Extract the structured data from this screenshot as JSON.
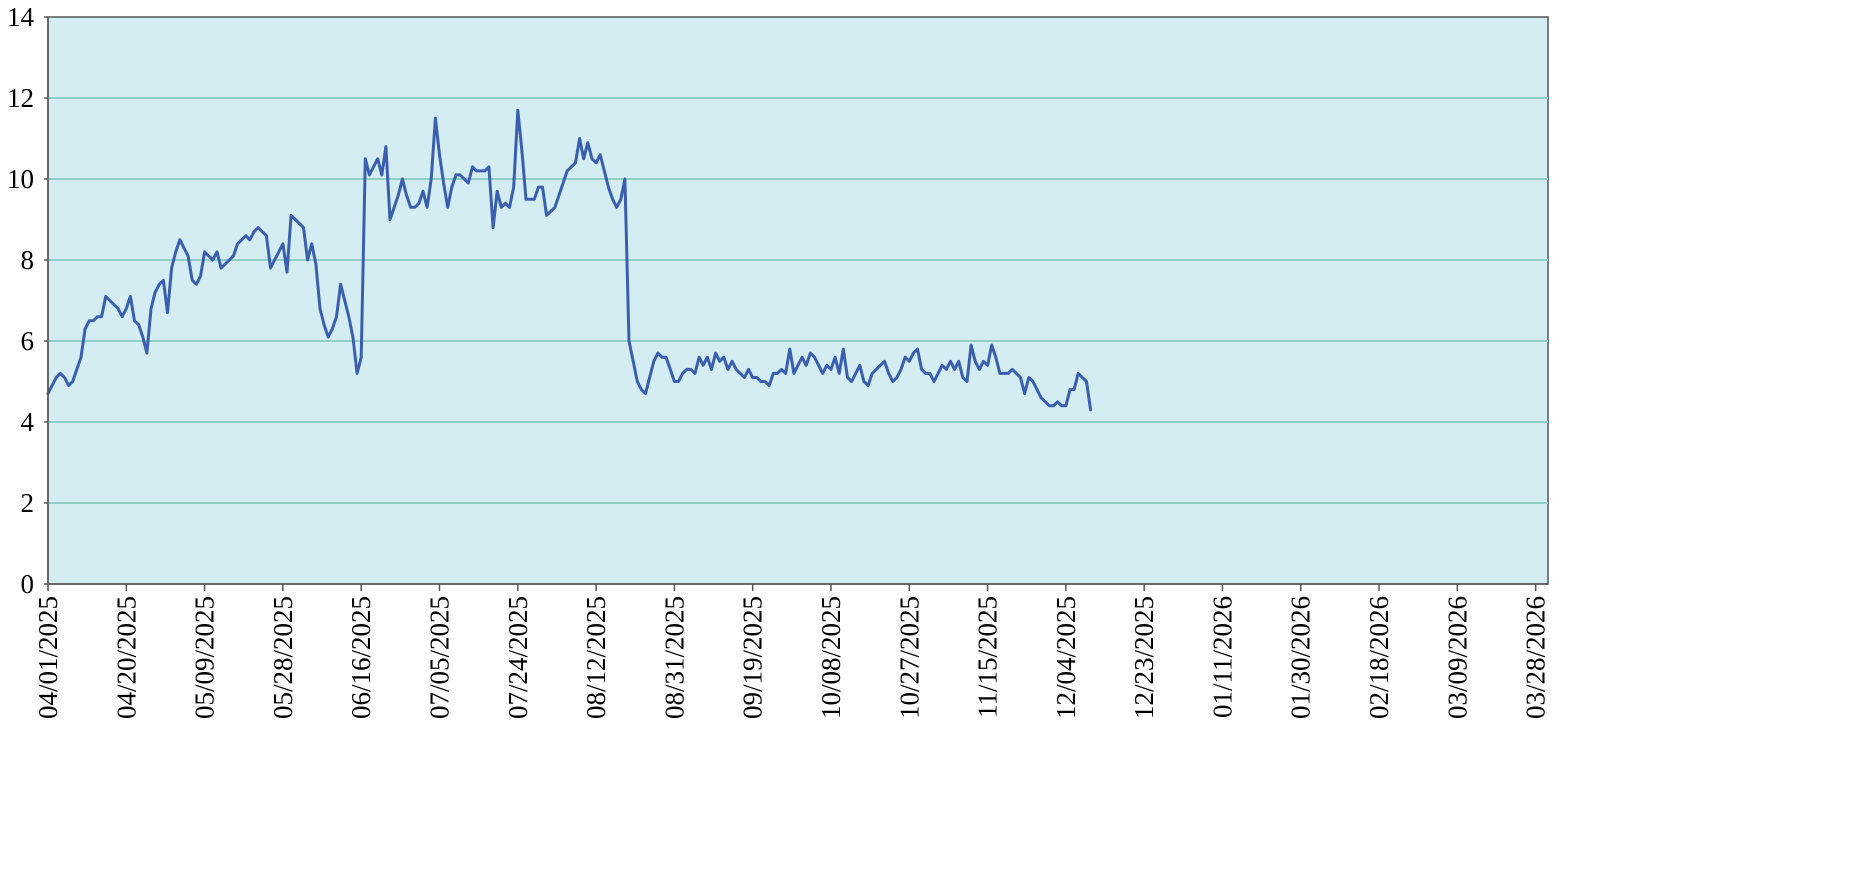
{
  "chart_data": {
    "type": "line",
    "title": "",
    "xlabel": "",
    "ylabel": "",
    "ylim": [
      0,
      14
    ],
    "yticks": [
      0,
      2,
      4,
      6,
      8,
      10,
      12,
      14
    ],
    "xlim": [
      "04/01/2025",
      "03/31/2026"
    ],
    "xticks": [
      "04/01/2025",
      "04/20/2025",
      "05/09/2025",
      "05/28/2025",
      "06/16/2025",
      "07/05/2025",
      "07/24/2025",
      "08/12/2025",
      "08/31/2025",
      "09/19/2025",
      "10/08/2025",
      "10/27/2025",
      "11/15/2025",
      "12/04/2025",
      "12/23/2025",
      "01/11/2026",
      "01/30/2026",
      "02/18/2026",
      "03/09/2026",
      "03/28/2026"
    ],
    "grid": {
      "horizontal": true,
      "vertical": false
    },
    "legend": "none",
    "colors": {
      "plot_background": "#d4edf3",
      "gridline": "#8fcfc6",
      "line": "#3a5fb0",
      "axis": "#555555"
    },
    "series": [
      {
        "points": [
          [
            "04/01/2025",
            4.7
          ],
          [
            "04/02/2025",
            4.9
          ],
          [
            "04/03/2025",
            5.1
          ],
          [
            "04/04/2025",
            5.2
          ],
          [
            "04/05/2025",
            5.1
          ],
          [
            "04/06/2025",
            4.9
          ],
          [
            "04/07/2025",
            5.0
          ],
          [
            "04/08/2025",
            5.3
          ],
          [
            "04/09/2025",
            5.6
          ],
          [
            "04/10/2025",
            6.3
          ],
          [
            "04/11/2025",
            6.5
          ],
          [
            "04/12/2025",
            6.5
          ],
          [
            "04/13/2025",
            6.6
          ],
          [
            "04/14/2025",
            6.6
          ],
          [
            "04/15/2025",
            7.1
          ],
          [
            "04/16/2025",
            7.0
          ],
          [
            "04/17/2025",
            6.9
          ],
          [
            "04/18/2025",
            6.8
          ],
          [
            "04/19/2025",
            6.6
          ],
          [
            "04/20/2025",
            6.8
          ],
          [
            "04/21/2025",
            7.1
          ],
          [
            "04/22/2025",
            6.5
          ],
          [
            "04/23/2025",
            6.4
          ],
          [
            "04/24/2025",
            6.1
          ],
          [
            "04/25/2025",
            5.7
          ],
          [
            "04/26/2025",
            6.8
          ],
          [
            "04/27/2025",
            7.2
          ],
          [
            "04/28/2025",
            7.4
          ],
          [
            "04/29/2025",
            7.5
          ],
          [
            "04/30/2025",
            6.7
          ],
          [
            "05/01/2025",
            7.8
          ],
          [
            "05/02/2025",
            8.2
          ],
          [
            "05/03/2025",
            8.5
          ],
          [
            "05/04/2025",
            8.3
          ],
          [
            "05/05/2025",
            8.1
          ],
          [
            "05/06/2025",
            7.5
          ],
          [
            "05/07/2025",
            7.4
          ],
          [
            "05/08/2025",
            7.6
          ],
          [
            "05/09/2025",
            8.2
          ],
          [
            "05/10/2025",
            8.1
          ],
          [
            "05/11/2025",
            8.0
          ],
          [
            "05/12/2025",
            8.2
          ],
          [
            "05/13/2025",
            7.8
          ],
          [
            "05/14/2025",
            7.9
          ],
          [
            "05/15/2025",
            8.0
          ],
          [
            "05/16/2025",
            8.1
          ],
          [
            "05/17/2025",
            8.4
          ],
          [
            "05/18/2025",
            8.5
          ],
          [
            "05/19/2025",
            8.6
          ],
          [
            "05/20/2025",
            8.5
          ],
          [
            "05/21/2025",
            8.7
          ],
          [
            "05/22/2025",
            8.8
          ],
          [
            "05/23/2025",
            8.7
          ],
          [
            "05/24/2025",
            8.6
          ],
          [
            "05/25/2025",
            7.8
          ],
          [
            "05/26/2025",
            8.0
          ],
          [
            "05/27/2025",
            8.2
          ],
          [
            "05/28/2025",
            8.4
          ],
          [
            "05/29/2025",
            7.7
          ],
          [
            "05/30/2025",
            9.1
          ],
          [
            "05/31/2025",
            9.0
          ],
          [
            "06/01/2025",
            8.9
          ],
          [
            "06/02/2025",
            8.8
          ],
          [
            "06/03/2025",
            8.0
          ],
          [
            "06/04/2025",
            8.4
          ],
          [
            "06/05/2025",
            7.9
          ],
          [
            "06/06/2025",
            6.8
          ],
          [
            "06/07/2025",
            6.4
          ],
          [
            "06/08/2025",
            6.1
          ],
          [
            "06/09/2025",
            6.3
          ],
          [
            "06/10/2025",
            6.6
          ],
          [
            "06/11/2025",
            7.4
          ],
          [
            "06/12/2025",
            7.0
          ],
          [
            "06/13/2025",
            6.6
          ],
          [
            "06/14/2025",
            6.1
          ],
          [
            "06/15/2025",
            5.2
          ],
          [
            "06/16/2025",
            5.6
          ],
          [
            "06/17/2025",
            10.5
          ],
          [
            "06/18/2025",
            10.1
          ],
          [
            "06/19/2025",
            10.3
          ],
          [
            "06/20/2025",
            10.5
          ],
          [
            "06/21/2025",
            10.1
          ],
          [
            "06/22/2025",
            10.8
          ],
          [
            "06/23/2025",
            9.0
          ],
          [
            "06/24/2025",
            9.3
          ],
          [
            "06/25/2025",
            9.6
          ],
          [
            "06/26/2025",
            10.0
          ],
          [
            "06/27/2025",
            9.6
          ],
          [
            "06/28/2025",
            9.3
          ],
          [
            "06/29/2025",
            9.3
          ],
          [
            "06/30/2025",
            9.4
          ],
          [
            "07/01/2025",
            9.7
          ],
          [
            "07/02/2025",
            9.3
          ],
          [
            "07/03/2025",
            10.0
          ],
          [
            "07/04/2025",
            11.5
          ],
          [
            "07/05/2025",
            10.6
          ],
          [
            "07/06/2025",
            9.9
          ],
          [
            "07/07/2025",
            9.3
          ],
          [
            "07/08/2025",
            9.8
          ],
          [
            "07/09/2025",
            10.1
          ],
          [
            "07/10/2025",
            10.1
          ],
          [
            "07/11/2025",
            10.0
          ],
          [
            "07/12/2025",
            9.9
          ],
          [
            "07/13/2025",
            10.3
          ],
          [
            "07/14/2025",
            10.2
          ],
          [
            "07/15/2025",
            10.2
          ],
          [
            "07/16/2025",
            10.2
          ],
          [
            "07/17/2025",
            10.3
          ],
          [
            "07/18/2025",
            8.8
          ],
          [
            "07/19/2025",
            9.7
          ],
          [
            "07/20/2025",
            9.3
          ],
          [
            "07/21/2025",
            9.4
          ],
          [
            "07/22/2025",
            9.3
          ],
          [
            "07/23/2025",
            9.8
          ],
          [
            "07/24/2025",
            11.7
          ],
          [
            "07/25/2025",
            10.7
          ],
          [
            "07/26/2025",
            9.5
          ],
          [
            "07/27/2025",
            9.5
          ],
          [
            "07/28/2025",
            9.5
          ],
          [
            "07/29/2025",
            9.8
          ],
          [
            "07/30/2025",
            9.8
          ],
          [
            "07/31/2025",
            9.1
          ],
          [
            "08/01/2025",
            9.2
          ],
          [
            "08/02/2025",
            9.3
          ],
          [
            "08/03/2025",
            9.6
          ],
          [
            "08/04/2025",
            9.9
          ],
          [
            "08/05/2025",
            10.2
          ],
          [
            "08/06/2025",
            10.3
          ],
          [
            "08/07/2025",
            10.4
          ],
          [
            "08/08/2025",
            11.0
          ],
          [
            "08/09/2025",
            10.5
          ],
          [
            "08/10/2025",
            10.9
          ],
          [
            "08/11/2025",
            10.5
          ],
          [
            "08/12/2025",
            10.4
          ],
          [
            "08/13/2025",
            10.6
          ],
          [
            "08/14/2025",
            10.2
          ],
          [
            "08/15/2025",
            9.8
          ],
          [
            "08/16/2025",
            9.5
          ],
          [
            "08/17/2025",
            9.3
          ],
          [
            "08/18/2025",
            9.5
          ],
          [
            "08/19/2025",
            10.0
          ],
          [
            "08/20/2025",
            6.0
          ],
          [
            "08/21/2025",
            5.5
          ],
          [
            "08/22/2025",
            5.0
          ],
          [
            "08/23/2025",
            4.8
          ],
          [
            "08/24/2025",
            4.7
          ],
          [
            "08/25/2025",
            5.1
          ],
          [
            "08/26/2025",
            5.5
          ],
          [
            "08/27/2025",
            5.7
          ],
          [
            "08/28/2025",
            5.6
          ],
          [
            "08/29/2025",
            5.6
          ],
          [
            "08/30/2025",
            5.3
          ],
          [
            "08/31/2025",
            5.0
          ],
          [
            "09/01/2025",
            5.0
          ],
          [
            "09/02/2025",
            5.2
          ],
          [
            "09/03/2025",
            5.3
          ],
          [
            "09/04/2025",
            5.3
          ],
          [
            "09/05/2025",
            5.2
          ],
          [
            "09/06/2025",
            5.6
          ],
          [
            "09/07/2025",
            5.4
          ],
          [
            "09/08/2025",
            5.6
          ],
          [
            "09/09/2025",
            5.3
          ],
          [
            "09/10/2025",
            5.7
          ],
          [
            "09/11/2025",
            5.5
          ],
          [
            "09/12/2025",
            5.6
          ],
          [
            "09/13/2025",
            5.3
          ],
          [
            "09/14/2025",
            5.5
          ],
          [
            "09/15/2025",
            5.3
          ],
          [
            "09/16/2025",
            5.2
          ],
          [
            "09/17/2025",
            5.1
          ],
          [
            "09/18/2025",
            5.3
          ],
          [
            "09/19/2025",
            5.1
          ],
          [
            "09/20/2025",
            5.1
          ],
          [
            "09/21/2025",
            5.0
          ],
          [
            "09/22/2025",
            5.0
          ],
          [
            "09/23/2025",
            4.9
          ],
          [
            "09/24/2025",
            5.2
          ],
          [
            "09/25/2025",
            5.2
          ],
          [
            "09/26/2025",
            5.3
          ],
          [
            "09/27/2025",
            5.2
          ],
          [
            "09/28/2025",
            5.8
          ],
          [
            "09/29/2025",
            5.2
          ],
          [
            "09/30/2025",
            5.4
          ],
          [
            "10/01/2025",
            5.6
          ],
          [
            "10/02/2025",
            5.4
          ],
          [
            "10/03/2025",
            5.7
          ],
          [
            "10/04/2025",
            5.6
          ],
          [
            "10/05/2025",
            5.4
          ],
          [
            "10/06/2025",
            5.2
          ],
          [
            "10/07/2025",
            5.4
          ],
          [
            "10/08/2025",
            5.3
          ],
          [
            "10/09/2025",
            5.6
          ],
          [
            "10/10/2025",
            5.2
          ],
          [
            "10/11/2025",
            5.8
          ],
          [
            "10/12/2025",
            5.1
          ],
          [
            "10/13/2025",
            5.0
          ],
          [
            "10/14/2025",
            5.2
          ],
          [
            "10/15/2025",
            5.4
          ],
          [
            "10/16/2025",
            5.0
          ],
          [
            "10/17/2025",
            4.9
          ],
          [
            "10/18/2025",
            5.2
          ],
          [
            "10/19/2025",
            5.3
          ],
          [
            "10/20/2025",
            5.4
          ],
          [
            "10/21/2025",
            5.5
          ],
          [
            "10/22/2025",
            5.2
          ],
          [
            "10/23/2025",
            5.0
          ],
          [
            "10/24/2025",
            5.1
          ],
          [
            "10/25/2025",
            5.3
          ],
          [
            "10/26/2025",
            5.6
          ],
          [
            "10/27/2025",
            5.5
          ],
          [
            "10/28/2025",
            5.7
          ],
          [
            "10/29/2025",
            5.8
          ],
          [
            "10/30/2025",
            5.3
          ],
          [
            "10/31/2025",
            5.2
          ],
          [
            "11/01/2025",
            5.2
          ],
          [
            "11/02/2025",
            5.0
          ],
          [
            "11/03/2025",
            5.2
          ],
          [
            "11/04/2025",
            5.4
          ],
          [
            "11/05/2025",
            5.3
          ],
          [
            "11/06/2025",
            5.5
          ],
          [
            "11/07/2025",
            5.3
          ],
          [
            "11/08/2025",
            5.5
          ],
          [
            "11/09/2025",
            5.1
          ],
          [
            "11/10/2025",
            5.0
          ],
          [
            "11/11/2025",
            5.9
          ],
          [
            "11/12/2025",
            5.5
          ],
          [
            "11/13/2025",
            5.3
          ],
          [
            "11/14/2025",
            5.5
          ],
          [
            "11/15/2025",
            5.4
          ],
          [
            "11/16/2025",
            5.9
          ],
          [
            "11/17/2025",
            5.6
          ],
          [
            "11/18/2025",
            5.2
          ],
          [
            "11/19/2025",
            5.2
          ],
          [
            "11/20/2025",
            5.2
          ],
          [
            "11/21/2025",
            5.3
          ],
          [
            "11/22/2025",
            5.2
          ],
          [
            "11/23/2025",
            5.1
          ],
          [
            "11/24/2025",
            4.7
          ],
          [
            "11/25/2025",
            5.1
          ],
          [
            "11/26/2025",
            5.0
          ],
          [
            "11/27/2025",
            4.8
          ],
          [
            "11/28/2025",
            4.6
          ],
          [
            "11/29/2025",
            4.5
          ],
          [
            "11/30/2025",
            4.4
          ],
          [
            "12/01/2025",
            4.4
          ],
          [
            "12/02/2025",
            4.5
          ],
          [
            "12/03/2025",
            4.4
          ],
          [
            "12/04/2025",
            4.4
          ],
          [
            "12/05/2025",
            4.8
          ],
          [
            "12/06/2025",
            4.8
          ],
          [
            "12/07/2025",
            5.2
          ],
          [
            "12/08/2025",
            5.1
          ],
          [
            "12/09/2025",
            5.0
          ],
          [
            "12/10/2025",
            4.3
          ]
        ]
      }
    ]
  }
}
